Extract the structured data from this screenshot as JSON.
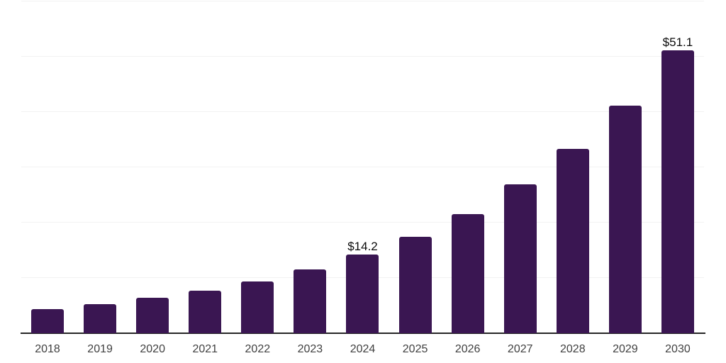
{
  "chart_data": {
    "type": "bar",
    "categories": [
      "2018",
      "2019",
      "2020",
      "2021",
      "2022",
      "2023",
      "2024",
      "2025",
      "2026",
      "2027",
      "2028",
      "2029",
      "2030"
    ],
    "values": [
      4.4,
      5.3,
      6.4,
      7.7,
      9.4,
      11.5,
      14.2,
      17.4,
      21.5,
      26.9,
      33.3,
      41.2,
      51.1
    ],
    "labeled_points": {
      "2024": "$14.2",
      "2030": "$51.1"
    },
    "title": "",
    "xlabel": "",
    "ylabel": "",
    "ylim": [
      0,
      60
    ],
    "grid_step": 10,
    "grid": "horizontal-only",
    "y_axis_labels_visible": false,
    "legend": "none",
    "value_prefix": "$"
  },
  "colors": {
    "bar": "#3a1652",
    "grid": "#f2f2f2",
    "axis": "#262626",
    "tick_label": "#404040",
    "value_label": "#0a0a0a",
    "background": "#ffffff"
  }
}
